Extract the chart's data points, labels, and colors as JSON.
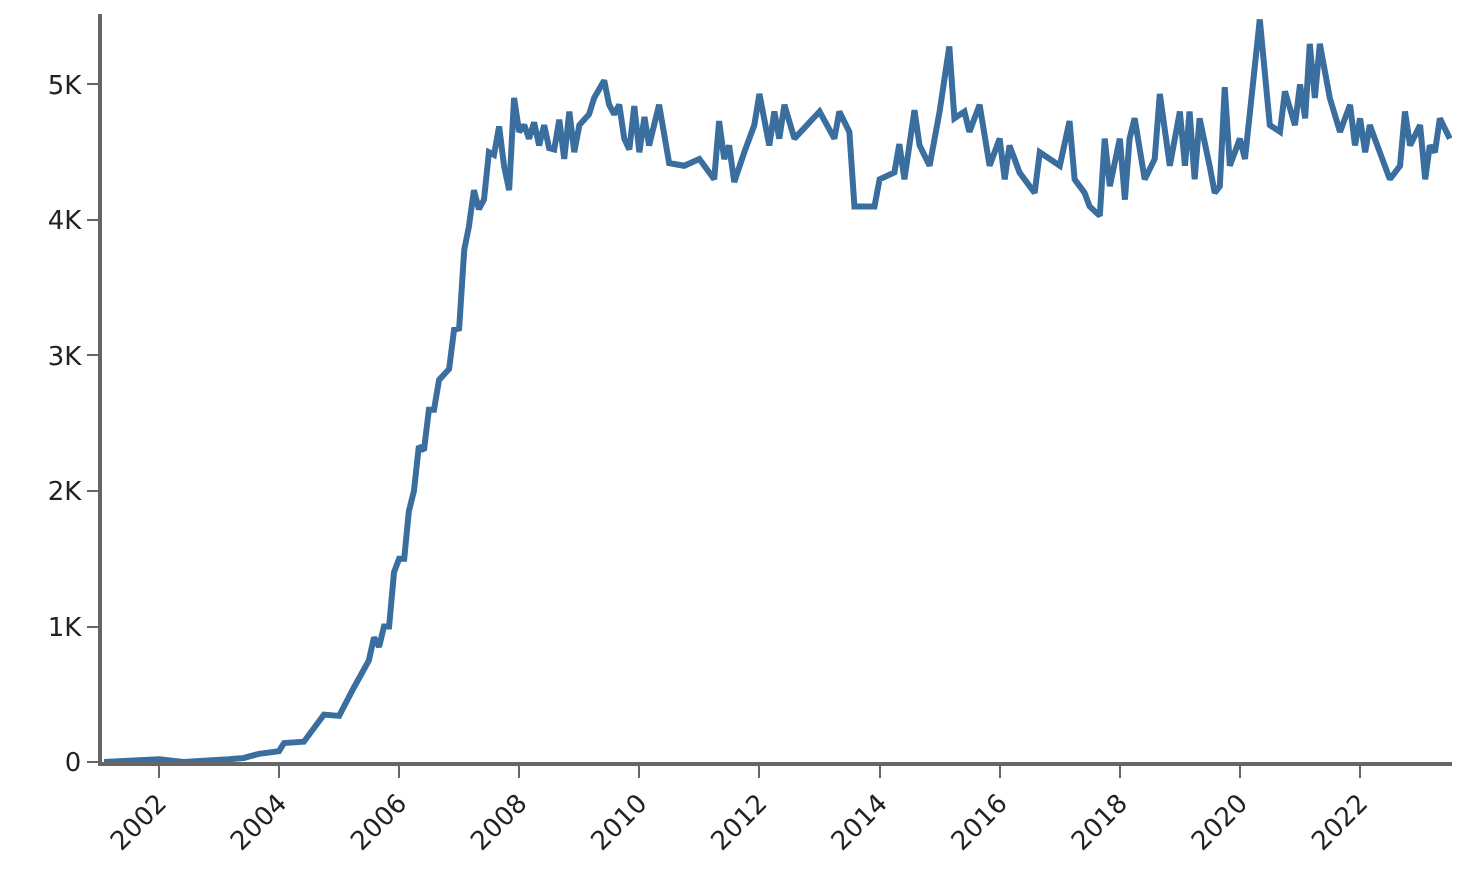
{
  "chart_data": {
    "type": "line",
    "x": [
      "2001-02",
      "2002-01",
      "2002-06",
      "2003-03",
      "2003-06",
      "2003-09",
      "2004-01",
      "2004-02",
      "2004-06",
      "2004-10",
      "2005-01",
      "2005-04",
      "2005-07",
      "2005-08",
      "2005-09",
      "2005-10",
      "2005-11",
      "2005-12",
      "2006-01",
      "2006-02",
      "2006-03",
      "2006-04",
      "2006-05",
      "2006-06",
      "2006-07",
      "2006-08",
      "2006-09",
      "2006-11",
      "2006-12",
      "2007-01",
      "2007-02",
      "2007-03",
      "2007-04",
      "2007-05",
      "2007-06",
      "2007-07",
      "2007-08",
      "2007-09",
      "2007-10",
      "2007-11",
      "2007-12",
      "2008-01",
      "2008-02",
      "2008-03",
      "2008-04",
      "2008-05",
      "2008-06",
      "2008-07",
      "2008-08",
      "2008-09",
      "2008-10",
      "2008-11",
      "2008-12",
      "2009-01",
      "2009-03",
      "2009-04",
      "2009-06",
      "2009-07",
      "2009-08",
      "2009-09",
      "2009-10",
      "2009-11",
      "2009-12",
      "2010-01",
      "2010-02",
      "2010-03",
      "2010-05",
      "2010-07",
      "2010-10",
      "2011-01",
      "2011-04",
      "2011-05",
      "2011-06",
      "2011-07",
      "2011-08",
      "2011-10",
      "2011-12",
      "2012-01",
      "2012-03",
      "2012-04",
      "2012-05",
      "2012-06",
      "2012-08",
      "2013-01",
      "2013-04",
      "2013-05",
      "2013-07",
      "2013-08",
      "2013-12",
      "2014-01",
      "2014-04",
      "2014-05",
      "2014-06",
      "2014-08",
      "2014-09",
      "2014-11",
      "2015-01",
      "2015-03",
      "2015-04",
      "2015-06",
      "2015-07",
      "2015-09",
      "2015-11",
      "2016-01",
      "2016-02",
      "2016-03",
      "2016-05",
      "2016-08",
      "2016-09",
      "2017-01",
      "2017-03",
      "2017-04",
      "2017-06",
      "2017-07",
      "2017-09",
      "2017-10",
      "2017-11",
      "2018-01",
      "2018-02",
      "2018-03",
      "2018-04",
      "2018-06",
      "2018-08",
      "2018-09",
      "2018-11",
      "2019-01",
      "2019-02",
      "2019-03",
      "2019-04",
      "2019-05",
      "2019-07",
      "2019-08",
      "2019-09",
      "2019-10",
      "2019-11",
      "2020-01",
      "2020-02",
      "2020-05",
      "2020-07",
      "2020-09",
      "2020-10",
      "2020-12",
      "2021-01",
      "2021-02",
      "2021-03",
      "2021-04",
      "2021-05",
      "2021-07",
      "2021-09",
      "2021-11",
      "2021-12",
      "2022-01",
      "2022-02",
      "2022-03",
      "2022-05",
      "2022-07",
      "2022-09",
      "2022-10",
      "2022-11",
      "2023-01",
      "2023-02",
      "2023-03",
      "2023-04",
      "2023-05",
      "2023-07"
    ],
    "series": [
      {
        "color": "#3a6e9f",
        "values": [
          0,
          20,
          0,
          20,
          30,
          60,
          80,
          140,
          150,
          350,
          340,
          550,
          750,
          920,
          850,
          1000,
          1000,
          1400,
          1500,
          1500,
          1850,
          2000,
          2330,
          2300,
          2600,
          2600,
          2820,
          2900,
          3190,
          3200,
          3780,
          3950,
          4220,
          4080,
          4150,
          4500,
          4480,
          4690,
          4400,
          4220,
          4900,
          4650,
          4700,
          4600,
          4720,
          4550,
          4700,
          4530,
          4520,
          4740,
          4450,
          4800,
          4500,
          4700,
          4780,
          4900,
          5030,
          4850,
          4780,
          4850,
          4600,
          4520,
          4840,
          4500,
          4760,
          4550,
          4850,
          4420,
          4400,
          4450,
          4300,
          4730,
          4450,
          4550,
          4280,
          4500,
          4700,
          4930,
          4550,
          4800,
          4600,
          4850,
          4600,
          4800,
          4600,
          4800,
          4650,
          4100,
          4100,
          4300,
          4350,
          4560,
          4300,
          4810,
          4550,
          4400,
          4800,
          5280,
          4750,
          4800,
          4650,
          4850,
          4400,
          4600,
          4300,
          4550,
          4350,
          4200,
          4500,
          4400,
          4730,
          4300,
          4200,
          4100,
          4030,
          4600,
          4250,
          4600,
          4150,
          4600,
          4750,
          4300,
          4450,
          4930,
          4400,
          4800,
          4400,
          4800,
          4300,
          4750,
          4400,
          4200,
          4250,
          4980,
          4400,
          4600,
          4450,
          5480,
          4700,
          4650,
          4950,
          4700,
          5000,
          4750,
          5300,
          4900,
          5300,
          4900,
          4650,
          4850,
          4550,
          4750,
          4500,
          4700,
          4500,
          4300,
          4400,
          4800,
          4550,
          4700,
          4300,
          4550,
          4500,
          4750,
          4600
        ]
      }
    ],
    "xlim": [
      "2001-01-20",
      "2023-07-14"
    ],
    "xticks": [
      "2002",
      "2004",
      "2006",
      "2008",
      "2010",
      "2012",
      "2014",
      "2016",
      "2018",
      "2020",
      "2022"
    ],
    "ylim": [
      0,
      5520
    ],
    "yticks": [
      0,
      {
        "value": 1000,
        "label": "1K"
      },
      {
        "value": 2000,
        "label": "2K"
      },
      {
        "value": 3000,
        "label": "3K"
      },
      {
        "value": 4000,
        "label": "4K"
      },
      {
        "value": 5000,
        "label": "5K"
      }
    ],
    "line_style": "solid"
  }
}
